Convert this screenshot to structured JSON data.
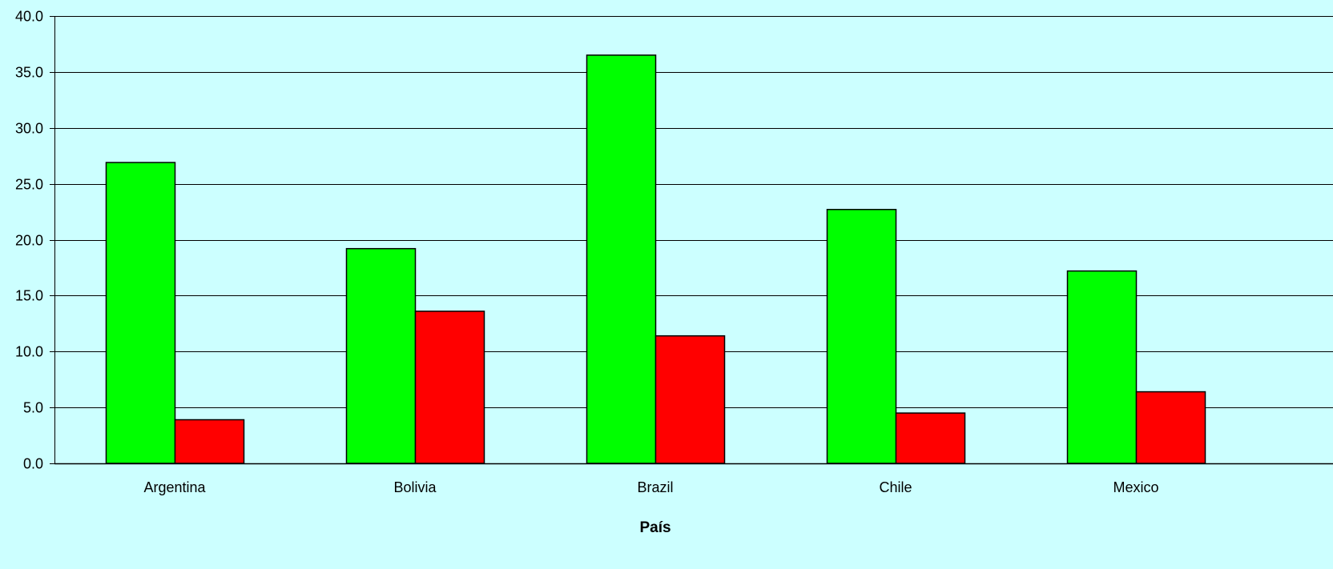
{
  "chart_data": {
    "type": "bar",
    "title": "",
    "xlabel": "País",
    "ylabel": "",
    "ylim": [
      0,
      40
    ],
    "yticks": [
      "0.0",
      "5.0",
      "10.0",
      "15.0",
      "20.0",
      "25.0",
      "30.0",
      "35.0",
      "40.0"
    ],
    "grid": true,
    "legend": "none",
    "categories": [
      "Argentina",
      "Bolivia",
      "Brazil",
      "Chile",
      "Mexico"
    ],
    "series": [
      {
        "values": [
          26.9,
          19.2,
          36.5,
          22.7,
          17.2
        ],
        "color": "#00FF00"
      },
      {
        "values": [
          3.9,
          13.6,
          11.4,
          4.5,
          6.4
        ],
        "color": "#FF0000"
      }
    ]
  },
  "colors": {
    "background": "#CCFFFF",
    "gridline": "#000000",
    "bar_border": "#000000"
  }
}
